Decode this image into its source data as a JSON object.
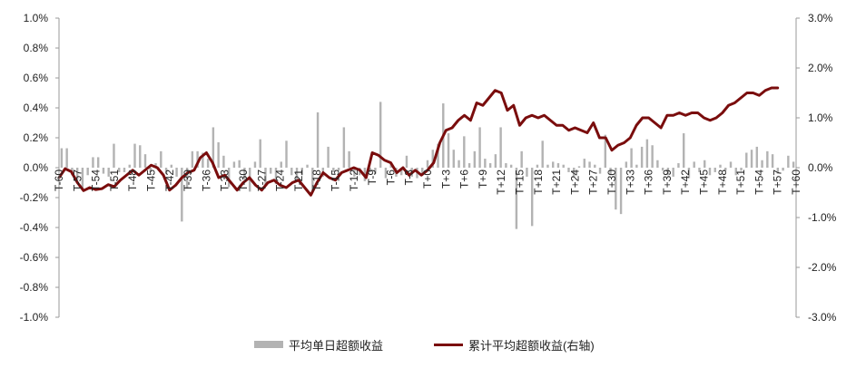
{
  "chart_data": {
    "type": "bar+line",
    "x_labels": [
      "T-60",
      "T-57",
      "T-54",
      "T-51",
      "T-48",
      "T-45",
      "T-42",
      "T-39",
      "T-36",
      "T-33",
      "T-30",
      "T-27",
      "T-24",
      "T-21",
      "T-18",
      "T-15",
      "T-12",
      "T-9",
      "T-6",
      "T-3",
      "T+0",
      "T+3",
      "T+6",
      "T+9",
      "T+12",
      "T+15",
      "T+18",
      "T+21",
      "T+24",
      "T+27",
      "T+30",
      "T+33",
      "T+36",
      "T+39",
      "T+42",
      "T+45",
      "T+48",
      "T+51",
      "T+54",
      "T+57",
      "T+60"
    ],
    "left_axis": {
      "ticks": [
        "1.0%",
        "0.8%",
        "0.6%",
        "0.4%",
        "0.2%",
        "0.0%",
        "-0.2%",
        "-0.4%",
        "-0.6%",
        "-0.8%",
        "-1.0%"
      ],
      "ylim": [
        -1.0,
        1.0
      ]
    },
    "right_axis": {
      "ticks": [
        "3.0%",
        "2.0%",
        "1.0%",
        "0.0%",
        "-1.0%",
        "-2.0%",
        "-3.0%"
      ],
      "ylim": [
        -3.0,
        3.0
      ]
    },
    "series": [
      {
        "name": "平均单日超额收益",
        "kind": "bar",
        "axis": "left",
        "color": "#b3b3b3",
        "values": [
          0.13,
          0.13,
          -0.05,
          -0.08,
          -0.15,
          -0.05,
          0.07,
          0.07,
          -0.04,
          -0.06,
          0.16,
          -0.03,
          -0.03,
          0.02,
          0.16,
          0.15,
          0.09,
          -0.03,
          0.03,
          0.11,
          -0.04,
          0.02,
          -0.06,
          -0.36,
          -0.14,
          0.11,
          0.11,
          0.1,
          0.06,
          0.27,
          0.17,
          0.08,
          -0.13,
          0.04,
          0.05,
          -0.08,
          -0.16,
          0.04,
          0.19,
          -0.12,
          -0.04,
          -0.11,
          0.04,
          0.18,
          -0.05,
          -0.09,
          -0.05,
          0.02,
          -0.15,
          0.37,
          -0.06,
          0.14,
          -0.03,
          -0.02,
          0.27,
          0.11,
          -0.06,
          -0.05,
          -0.09,
          -0.03,
          -0.04,
          0.44,
          -0.07,
          0.03,
          -0.06,
          -0.05,
          0.08,
          -0.06,
          -0.07,
          -0.04,
          0.05,
          0.12,
          0.16,
          0.43,
          0.23,
          0.12,
          0.05,
          0.21,
          0.03,
          0.11,
          0.27,
          0.06,
          0.03,
          0.09,
          0.27,
          0.03,
          0.02,
          -0.41,
          0.11,
          -0.06,
          -0.39,
          0.02,
          0.18,
          0.02,
          0.04,
          0.03,
          0.02,
          -0.03,
          -0.06,
          0.01,
          0.06,
          0.04,
          0.02,
          -0.04,
          0.22,
          -0.05,
          -0.28,
          -0.31,
          0.04,
          0.13,
          0.02,
          0.14,
          0.19,
          0.15,
          0.05,
          -0.02,
          -0.05,
          -0.06,
          0.03,
          0.23,
          -0.07,
          0.04,
          -0.03,
          0.05,
          -0.05,
          -0.03,
          0.02,
          -0.02,
          0.04,
          -0.05,
          -0.02,
          0.1,
          0.12,
          0.14,
          0.05,
          0.11,
          0.09,
          -0.04,
          -0.02,
          0.08,
          0.04
        ]
      },
      {
        "name": "累计平均超额收益(右轴)",
        "kind": "line",
        "axis": "right",
        "color": "#7a0d0d",
        "points": [
          [
            -60,
            -0.2
          ],
          [
            -59,
            -0.02
          ],
          [
            -58,
            -0.08
          ],
          [
            -57,
            -0.3
          ],
          [
            -56,
            -0.46
          ],
          [
            -55,
            -0.4
          ],
          [
            -54,
            -0.44
          ],
          [
            -53,
            -0.42
          ],
          [
            -52,
            -0.34
          ],
          [
            -51,
            -0.38
          ],
          [
            -50,
            -0.25
          ],
          [
            -49,
            -0.15
          ],
          [
            -48,
            -0.05
          ],
          [
            -47,
            -0.15
          ],
          [
            -46,
            -0.05
          ],
          [
            -45,
            0.05
          ],
          [
            -44,
            0.0
          ],
          [
            -43,
            -0.15
          ],
          [
            -42,
            -0.45
          ],
          [
            -41,
            -0.35
          ],
          [
            -40,
            -0.2
          ],
          [
            -39,
            -0.1
          ],
          [
            -38,
            -0.05
          ],
          [
            -37,
            0.2
          ],
          [
            -36,
            0.3
          ],
          [
            -35,
            0.1
          ],
          [
            -34,
            -0.2
          ],
          [
            -33,
            -0.15
          ],
          [
            -32,
            -0.3
          ],
          [
            -31,
            -0.45
          ],
          [
            -30,
            -0.3
          ],
          [
            -29,
            -0.2
          ],
          [
            -28,
            -0.35
          ],
          [
            -27,
            -0.45
          ],
          [
            -26,
            -0.3
          ],
          [
            -25,
            -0.25
          ],
          [
            -24,
            -0.35
          ],
          [
            -23,
            -0.4
          ],
          [
            -22,
            -0.3
          ],
          [
            -21,
            -0.25
          ],
          [
            -20,
            -0.4
          ],
          [
            -19,
            -0.55
          ],
          [
            -18,
            -0.3
          ],
          [
            -17,
            -0.1
          ],
          [
            -16,
            -0.2
          ],
          [
            -15,
            -0.25
          ],
          [
            -14,
            -0.1
          ],
          [
            -13,
            -0.05
          ],
          [
            -12,
            0.0
          ],
          [
            -11,
            -0.05
          ],
          [
            -10,
            -0.2
          ],
          [
            -9,
            0.3
          ],
          [
            -8,
            0.25
          ],
          [
            -7,
            0.15
          ],
          [
            -6,
            0.1
          ],
          [
            -5,
            -0.1
          ],
          [
            -4,
            0.0
          ],
          [
            -3,
            -0.15
          ],
          [
            -2,
            -0.05
          ],
          [
            -1,
            -0.15
          ],
          [
            0,
            -0.05
          ],
          [
            1,
            0.1
          ],
          [
            2,
            0.5
          ],
          [
            3,
            0.75
          ],
          [
            4,
            0.8
          ],
          [
            5,
            0.95
          ],
          [
            6,
            1.05
          ],
          [
            7,
            0.95
          ],
          [
            8,
            1.3
          ],
          [
            9,
            1.25
          ],
          [
            10,
            1.4
          ],
          [
            11,
            1.55
          ],
          [
            12,
            1.5
          ],
          [
            13,
            1.15
          ],
          [
            14,
            1.25
          ],
          [
            15,
            0.85
          ],
          [
            16,
            1.0
          ],
          [
            17,
            1.05
          ],
          [
            18,
            1.0
          ],
          [
            19,
            1.05
          ],
          [
            20,
            0.95
          ],
          [
            21,
            0.85
          ],
          [
            22,
            0.85
          ],
          [
            23,
            0.75
          ],
          [
            24,
            0.8
          ],
          [
            25,
            0.75
          ],
          [
            26,
            0.7
          ],
          [
            27,
            0.9
          ],
          [
            28,
            0.6
          ],
          [
            29,
            0.6
          ],
          [
            30,
            0.35
          ],
          [
            31,
            0.45
          ],
          [
            32,
            0.5
          ],
          [
            33,
            0.6
          ],
          [
            34,
            0.85
          ],
          [
            35,
            1.0
          ],
          [
            36,
            1.0
          ],
          [
            37,
            0.9
          ],
          [
            38,
            0.8
          ],
          [
            39,
            1.05
          ],
          [
            40,
            1.05
          ],
          [
            41,
            1.1
          ],
          [
            42,
            1.05
          ],
          [
            43,
            1.1
          ],
          [
            44,
            1.1
          ],
          [
            45,
            1.0
          ],
          [
            46,
            0.95
          ],
          [
            47,
            1.0
          ],
          [
            48,
            1.1
          ],
          [
            49,
            1.25
          ],
          [
            50,
            1.3
          ],
          [
            51,
            1.4
          ],
          [
            52,
            1.5
          ],
          [
            53,
            1.5
          ],
          [
            54,
            1.45
          ],
          [
            55,
            1.55
          ],
          [
            56,
            1.6
          ],
          [
            57,
            1.6
          ]
        ]
      }
    ],
    "grid": false,
    "legend_position": "bottom"
  }
}
